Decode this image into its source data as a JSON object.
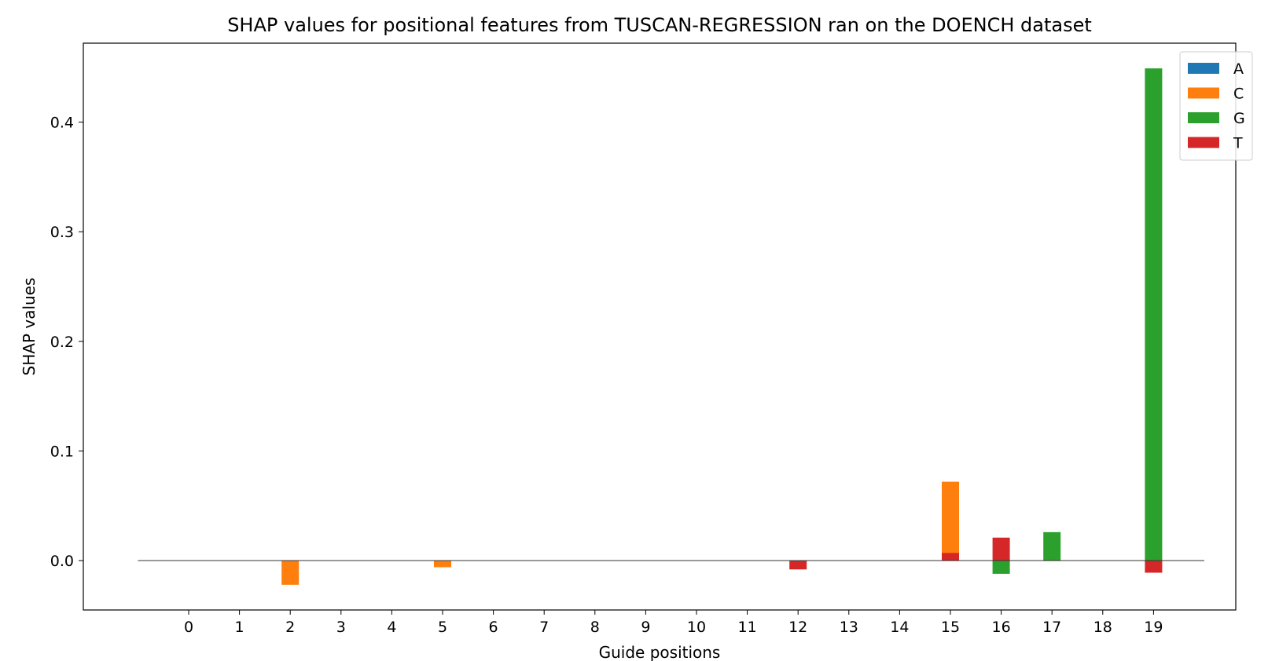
{
  "chart_data": {
    "type": "bar",
    "title": "SHAP values for positional features from TUSCAN-REGRESSION ran on the DOENCH dataset",
    "xlabel": "Guide positions",
    "ylabel": "SHAP values",
    "categories": [
      "0",
      "1",
      "2",
      "3",
      "4",
      "5",
      "6",
      "7",
      "8",
      "9",
      "10",
      "11",
      "12",
      "13",
      "14",
      "15",
      "16",
      "17",
      "18",
      "19"
    ],
    "ylim": [
      -0.045,
      0.472
    ],
    "yticks": [
      "0.0",
      "0.1",
      "0.2",
      "0.3",
      "0.4"
    ],
    "ytick_values": [
      0.0,
      0.1,
      0.2,
      0.3,
      0.4
    ],
    "legend_position": "top-right",
    "baseline": 0.0,
    "series": [
      {
        "name": "A",
        "color": "#1f77b4",
        "values": [
          0,
          0,
          0,
          0,
          0,
          0,
          0,
          0,
          0,
          0,
          0,
          0,
          0,
          0,
          0,
          0,
          0,
          0,
          0,
          0
        ]
      },
      {
        "name": "C",
        "color": "#ff7f0e",
        "values": [
          0,
          0,
          -0.022,
          0,
          0,
          -0.006,
          0,
          0,
          0,
          0,
          0,
          0,
          0,
          0,
          0,
          0.072,
          0,
          0,
          0,
          0
        ]
      },
      {
        "name": "G",
        "color": "#2ca02c",
        "values": [
          0,
          0,
          0,
          0,
          0,
          0,
          0,
          0,
          0,
          0,
          0,
          0,
          0,
          0,
          0,
          0,
          -0.012,
          0.026,
          0,
          0.449
        ]
      },
      {
        "name": "T",
        "color": "#d62728",
        "values": [
          0,
          0,
          0,
          0,
          0,
          0,
          0,
          0,
          0,
          0,
          0,
          0,
          -0.008,
          0,
          0,
          0.007,
          0.021,
          0,
          0,
          -0.011
        ]
      }
    ]
  }
}
